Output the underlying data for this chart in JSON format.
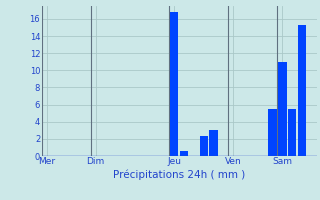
{
  "title": "",
  "xlabel": "Précipitations 24h ( mm )",
  "background_color": "#cce8e8",
  "bar_color": "#0044ff",
  "grid_color": "#aac8c8",
  "text_color": "#2244cc",
  "vline_color": "#607080",
  "ylim": [
    0,
    17.5
  ],
  "yticks": [
    0,
    2,
    4,
    6,
    8,
    10,
    12,
    14,
    16
  ],
  "num_bars": 28,
  "bar_values": [
    0,
    0,
    0,
    0,
    0,
    0,
    0,
    0,
    0,
    0,
    0,
    0,
    0,
    16.8,
    0.6,
    0,
    2.3,
    3.0,
    0,
    0,
    0,
    0,
    0,
    5.5,
    11.0,
    5.5,
    15.3,
    0
  ],
  "day_tick_positions": [
    0,
    5,
    13,
    19,
    24
  ],
  "day_labels": [
    "Mer",
    "Dim",
    "Jeu",
    "Ven",
    "Sam"
  ],
  "vline_positions": [
    0,
    5,
    13,
    19,
    24
  ],
  "bar_width": 0.85
}
